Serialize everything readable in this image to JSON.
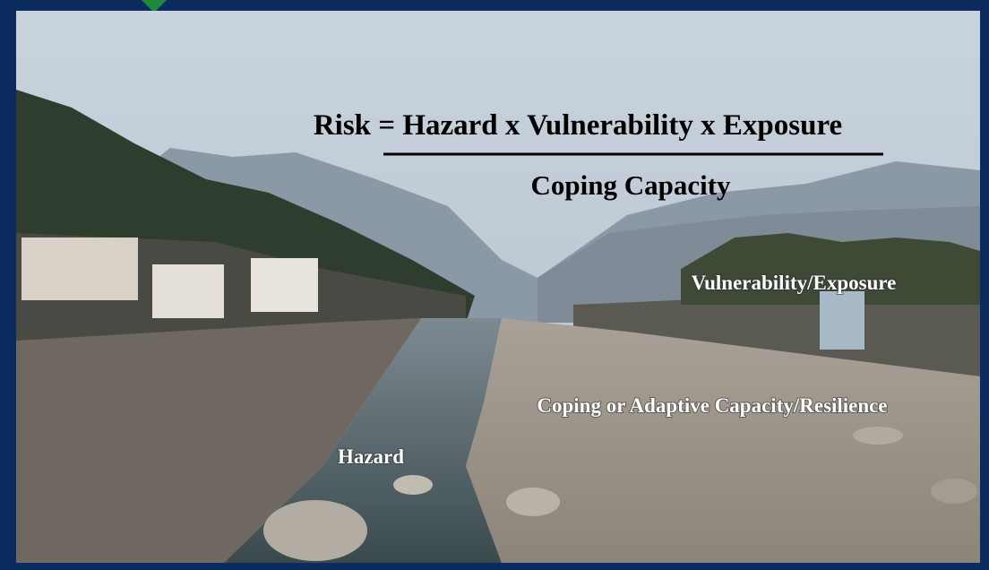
{
  "slide": {
    "formula": {
      "numerator": "Risk = Hazard x Vulnerability x Exposure",
      "denominator": "Coping Capacity"
    },
    "labels": [
      "Vulnerability/Exposure",
      "Coping or Adaptive Capacity/Resilience",
      "Hazard"
    ]
  }
}
